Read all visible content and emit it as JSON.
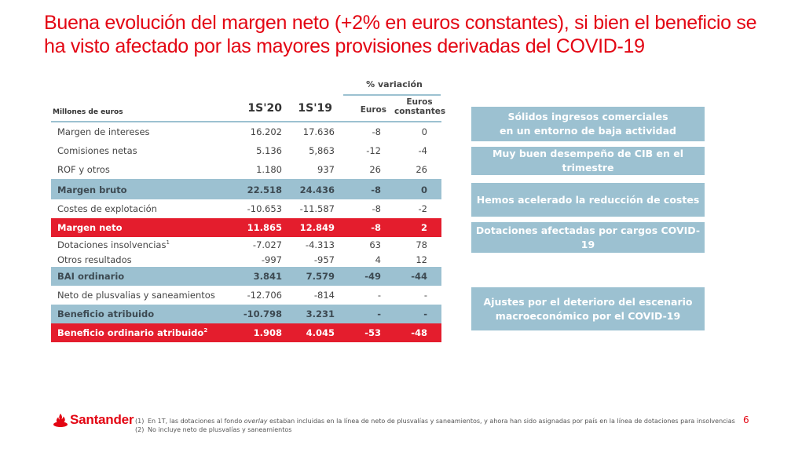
{
  "title": {
    "line1": "Buena evolución del margen neto (+2% en euros constantes), si bien el beneficio se",
    "line2": "ha visto afectado por las mayores provisiones derivadas del COVID-19"
  },
  "table": {
    "unit_label": "Millones de euros",
    "columns": [
      "1S'20",
      "1S'19"
    ],
    "variation_header": "% variación",
    "variation_columns": [
      "Euros",
      "Euros constantes"
    ],
    "variation_col2_lines": [
      "Euros",
      "constantes"
    ],
    "rows": [
      {
        "label": "Margen de intereses",
        "sup": "",
        "v20": "16.202",
        "v19": "17.636",
        "eur": "-8",
        "eur_const": "0",
        "style": "normal"
      },
      {
        "label": "Comisiones netas",
        "sup": "",
        "v20": "5.136",
        "v19": "5,863",
        "eur": "-12",
        "eur_const": "-4",
        "style": "normal"
      },
      {
        "label": "ROF y otros",
        "sup": "",
        "v20": "1.180",
        "v19": "937",
        "eur": "26",
        "eur_const": "26",
        "style": "normal"
      },
      {
        "label": "Margen bruto",
        "sup": "",
        "v20": "22.518",
        "v19": "24.436",
        "eur": "-8",
        "eur_const": "0",
        "style": "blue"
      },
      {
        "label": "Costes de explotación",
        "sup": "",
        "v20": "-10.653",
        "v19": "-11.587",
        "eur": "-8",
        "eur_const": "-2",
        "style": "normal"
      },
      {
        "label": "Margen neto",
        "sup": "",
        "v20": "11.865",
        "v19": "12.849",
        "eur": "-8",
        "eur_const": "2",
        "style": "red"
      },
      {
        "label": "Dotaciones insolvencias",
        "sup": "1",
        "v20": "-7.027",
        "v19": "-4.313",
        "eur": "63",
        "eur_const": "78",
        "style": "normal"
      },
      {
        "label": "Otros resultados",
        "sup": "",
        "v20": "-997",
        "v19": "-957",
        "eur": "4",
        "eur_const": "12",
        "style": "normal"
      },
      {
        "label": "BAI ordinario",
        "sup": "",
        "v20": "3.841",
        "v19": "7.579",
        "eur": "-49",
        "eur_const": "-44",
        "style": "blue"
      },
      {
        "label": "Neto de plusvalias y saneamientos",
        "sup": "",
        "v20": "-12.706",
        "v19": "-814",
        "eur": "-",
        "eur_const": "-",
        "style": "normal"
      },
      {
        "label": "Beneficio atribuido",
        "sup": "",
        "v20": "-10.798",
        "v19": "3.231",
        "eur": "-",
        "eur_const": "-",
        "style": "blue"
      },
      {
        "label": "Beneficio ordinario atribuido",
        "sup": "2",
        "v20": "1.908",
        "v19": "4.045",
        "eur": "-53",
        "eur_const": "-48",
        "style": "red"
      }
    ]
  },
  "highlights": [
    {
      "lines": [
        "Sólidos ingresos comerciales",
        "en un entorno de baja actividad"
      ]
    },
    {
      "lines": [
        "Muy buen desempeño de CIB en el trimestre"
      ]
    },
    {
      "lines": [
        "Hemos acelerado la reducción de costes"
      ]
    },
    {
      "lines": [
        "Dotaciones afectadas por cargos COVID-19"
      ]
    },
    {
      "lines": [
        "Ajustes por el deterioro del escenario",
        "macroeconómico por el COVID-19"
      ]
    }
  ],
  "footer": {
    "brand": "Santander",
    "notes": [
      {
        "num": "(1)",
        "pre": "En 1T, las dotaciones al fondo ",
        "em": "overlay",
        "post": " estaban incluidas en la línea de neto de plusvalías y saneamientos, y ahora han sido asignadas por país en la línea de dotaciones para insolvencias"
      },
      {
        "num": "(2)",
        "pre": "No incluye neto de plusvalías y saneamientos",
        "em": "",
        "post": ""
      }
    ],
    "page_number": "6"
  },
  "colors": {
    "brand_red": "#e30613",
    "row_red": "#e41d2d",
    "accent_blue": "#9cc1d1"
  }
}
